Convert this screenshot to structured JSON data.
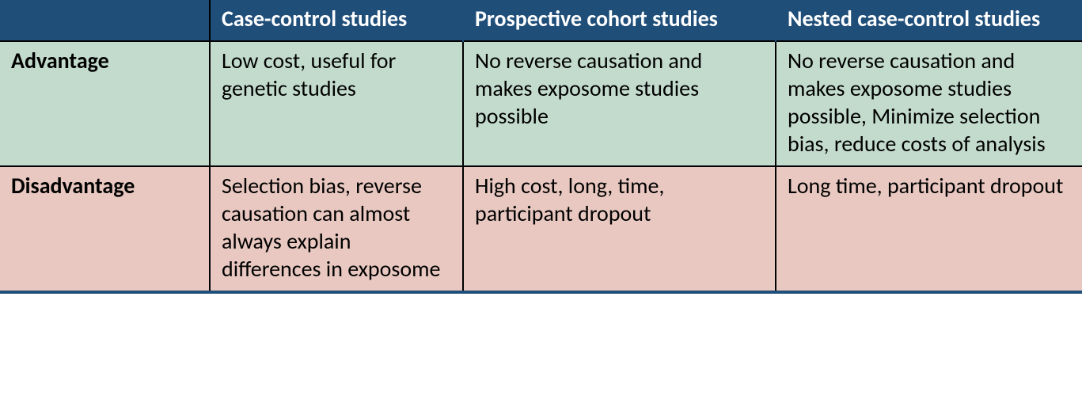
{
  "colors": {
    "header_bg": "#1f4e79",
    "header_fg": "#ffffff",
    "advantage_bg": "#c3dbcd",
    "disadvantage_bg": "#e8c8c0",
    "border": "#000000"
  },
  "table": {
    "columns": [
      "",
      "Case-control studies",
      "Prospective cohort studies",
      "Nested case-control studies"
    ],
    "rows": [
      {
        "label": "Advantage",
        "cells": [
          "Low cost, useful for genetic studies",
          "No reverse causation and makes exposome studies possible",
          "No reverse causation and makes exposome studies possible, Minimize selection bias, reduce costs of analysis"
        ]
      },
      {
        "label": "Disadvantage",
        "cells": [
          "Selection bias, reverse causation can almost always explain differences in exposome",
          "High cost, long, time, participant dropout",
          "Long time, participant dropout"
        ]
      }
    ]
  }
}
